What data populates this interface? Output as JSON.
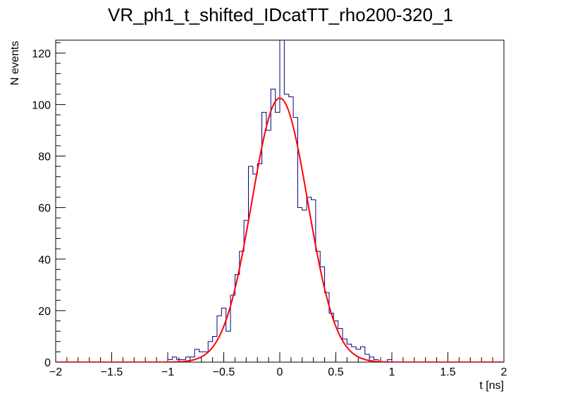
{
  "chart_data": {
    "type": "histogram",
    "title": "VR_ph1_t_shifted_IDcatTT_rho200-320_1",
    "xlabel": "t [ns]",
    "ylabel": "N events",
    "xlim": [
      -2,
      2
    ],
    "ylim": [
      0,
      125
    ],
    "x_ticks": [
      -2,
      -1.5,
      -1,
      -0.5,
      0,
      0.5,
      1,
      1.5,
      2
    ],
    "x_tick_labels": [
      "−2",
      "−1.5",
      "−1",
      "−0.5",
      "0",
      "0.5",
      "1",
      "1.5",
      "2"
    ],
    "y_ticks": [
      0,
      20,
      40,
      60,
      80,
      100,
      120
    ],
    "y_tick_labels": [
      "0",
      "20",
      "40",
      "60",
      "80",
      "100",
      "120"
    ],
    "grid": false,
    "legend": "none",
    "series": [
      {
        "type": "step",
        "color": "#000080",
        "bin_low_edge": -2,
        "bin_width": 0.04,
        "counts": [
          0,
          0,
          0,
          0,
          0,
          0,
          0,
          0,
          0,
          0,
          0,
          0,
          0,
          0,
          0,
          0,
          0,
          0,
          0,
          0,
          0,
          0,
          0,
          0,
          0,
          1,
          2,
          1,
          1,
          2,
          2,
          5,
          4,
          4,
          8,
          10,
          18,
          21,
          12,
          26,
          34,
          43,
          55,
          76,
          73,
          77,
          97,
          90,
          106,
          97,
          130,
          104,
          103,
          95,
          60,
          59,
          64,
          63,
          43,
          37,
          27,
          19,
          16,
          13,
          9,
          7,
          6,
          5,
          6,
          3,
          2,
          1,
          0,
          0,
          1,
          0,
          0,
          0,
          0,
          0,
          0,
          0,
          0,
          0,
          0,
          0,
          0,
          0,
          0,
          0,
          0,
          0,
          0,
          0,
          0,
          0,
          0,
          0,
          0,
          0
        ]
      },
      {
        "type": "line",
        "color": "#ff0000",
        "model": "gaussian",
        "amplitude": 102.5,
        "mean": 0.0,
        "sigma": 0.25
      }
    ]
  }
}
